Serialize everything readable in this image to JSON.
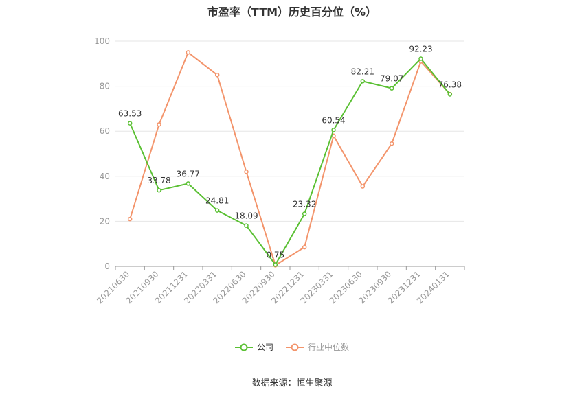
{
  "chart_data": {
    "type": "line",
    "title": "市盈率（TTM）历史百分位（%）",
    "categories": [
      "20210630",
      "20210930",
      "20211231",
      "20220331",
      "20220630",
      "20220930",
      "20221231",
      "20230331",
      "20230630",
      "20230930",
      "20231231",
      "20240131"
    ],
    "ylim": [
      0,
      100
    ],
    "yticks": [
      "0",
      "20",
      "40",
      "60",
      "80",
      "100"
    ],
    "grid": true,
    "legend_position": "bottom",
    "series": [
      {
        "name": "公司",
        "color": "#5ac033",
        "values": [
          63.53,
          33.78,
          36.77,
          24.81,
          18.09,
          0.75,
          23.32,
          60.54,
          82.21,
          79.07,
          92.23,
          76.38
        ],
        "labels": [
          "63.53",
          "33.78",
          "36.77",
          "24.81",
          "18.09",
          "0.75",
          "23.32",
          "60.54",
          "82.21",
          "79.07",
          "92.23",
          "76.38"
        ]
      },
      {
        "name": "行业中位数",
        "color": "#f3946b",
        "values": [
          21.0,
          63.0,
          95.0,
          85.0,
          42.0,
          0.5,
          8.5,
          58.0,
          35.5,
          54.5,
          91.0,
          76.5
        ]
      }
    ]
  },
  "source": "数据来源：恒生聚源"
}
